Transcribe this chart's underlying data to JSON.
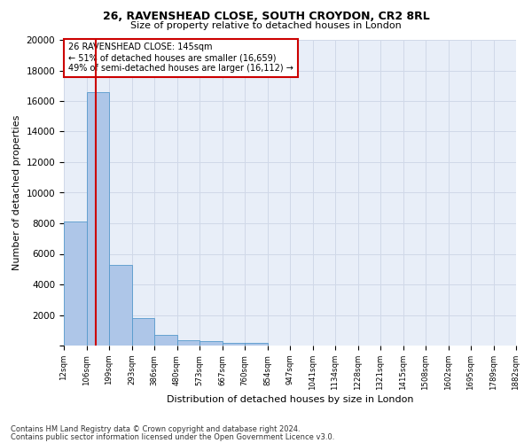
{
  "title1": "26, RAVENSHEAD CLOSE, SOUTH CROYDON, CR2 8RL",
  "title2": "Size of property relative to detached houses in London",
  "xlabel": "Distribution of detached houses by size in London",
  "ylabel": "Number of detached properties",
  "bin_labels": [
    "12sqm",
    "106sqm",
    "199sqm",
    "293sqm",
    "386sqm",
    "480sqm",
    "573sqm",
    "667sqm",
    "760sqm",
    "854sqm",
    "947sqm",
    "1041sqm",
    "1134sqm",
    "1228sqm",
    "1321sqm",
    "1415sqm",
    "1508sqm",
    "1602sqm",
    "1695sqm",
    "1789sqm",
    "1882sqm"
  ],
  "bar_heights": [
    8100,
    16600,
    5300,
    1800,
    700,
    350,
    280,
    200,
    160,
    0,
    0,
    0,
    0,
    0,
    0,
    0,
    0,
    0,
    0,
    0
  ],
  "bar_color": "#aec6e8",
  "bar_edge_color": "#5599cc",
  "annotation_line1": "26 RAVENSHEAD CLOSE: 145sqm",
  "annotation_line2": "← 51% of detached houses are smaller (16,659)",
  "annotation_line3": "49% of semi-detached houses are larger (16,112) →",
  "annotation_box_color": "#ffffff",
  "annotation_border_color": "#cc0000",
  "vline_color": "#cc0000",
  "grid_color": "#d0d8e8",
  "background_color": "#e8eef8",
  "ylim": [
    0,
    20000
  ],
  "yticks": [
    0,
    2000,
    4000,
    6000,
    8000,
    10000,
    12000,
    14000,
    16000,
    18000,
    20000
  ],
  "footnote1": "Contains HM Land Registry data © Crown copyright and database right 2024.",
  "footnote2": "Contains public sector information licensed under the Open Government Licence v3.0."
}
